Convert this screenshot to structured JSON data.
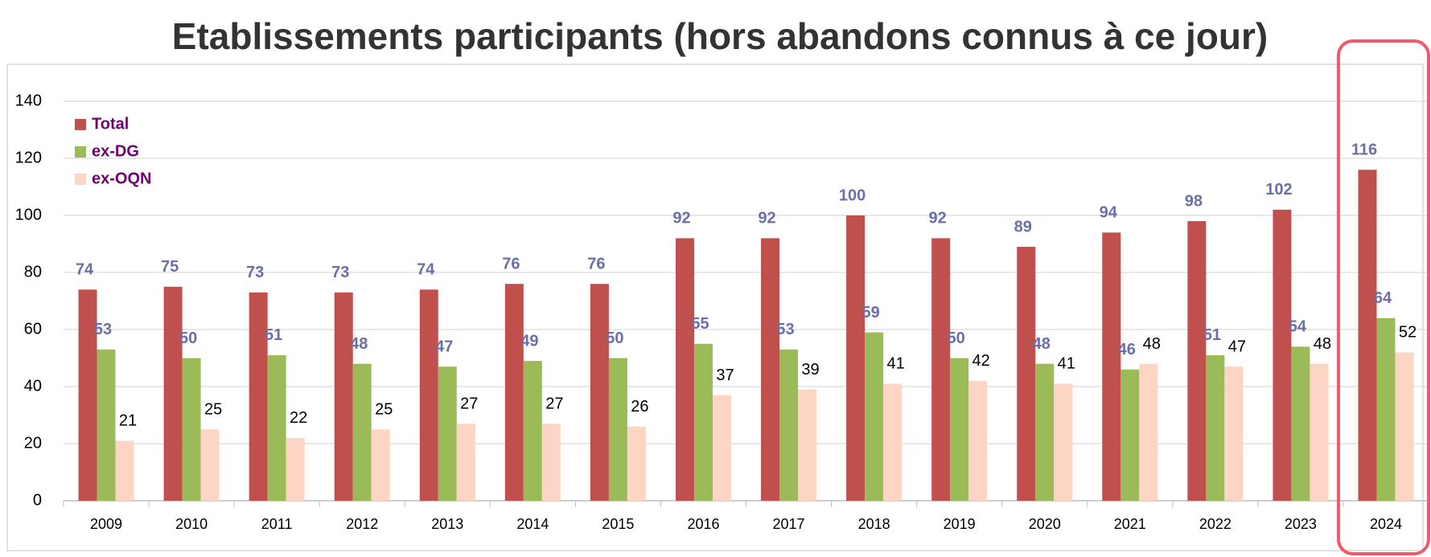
{
  "chart_data": {
    "type": "bar",
    "title": "Etablissements participants (hors abandons connus à ce jour)",
    "categories": [
      "2009",
      "2010",
      "2011",
      "2012",
      "2013",
      "2014",
      "2015",
      "2016",
      "2017",
      "2018",
      "2019",
      "2020",
      "2021",
      "2022",
      "2023",
      "2024"
    ],
    "series": [
      {
        "name": "Total",
        "color": "#c0504d",
        "values": [
          74,
          75,
          73,
          73,
          74,
          76,
          76,
          92,
          92,
          100,
          92,
          89,
          94,
          98,
          102,
          116
        ]
      },
      {
        "name": "ex-DG",
        "color": "#9bbb59",
        "values": [
          53,
          50,
          51,
          48,
          47,
          49,
          50,
          55,
          53,
          59,
          50,
          48,
          46,
          51,
          54,
          64
        ]
      },
      {
        "name": "ex-OQN",
        "color": "#fcd5c4",
        "values": [
          21,
          25,
          22,
          25,
          27,
          27,
          26,
          37,
          39,
          41,
          42,
          41,
          48,
          47,
          48,
          52
        ]
      }
    ],
    "ylim": [
      0,
      140
    ],
    "yticks": [
      0,
      20,
      40,
      60,
      80,
      100,
      120,
      140
    ],
    "grid": true,
    "legend": "top-left"
  }
}
